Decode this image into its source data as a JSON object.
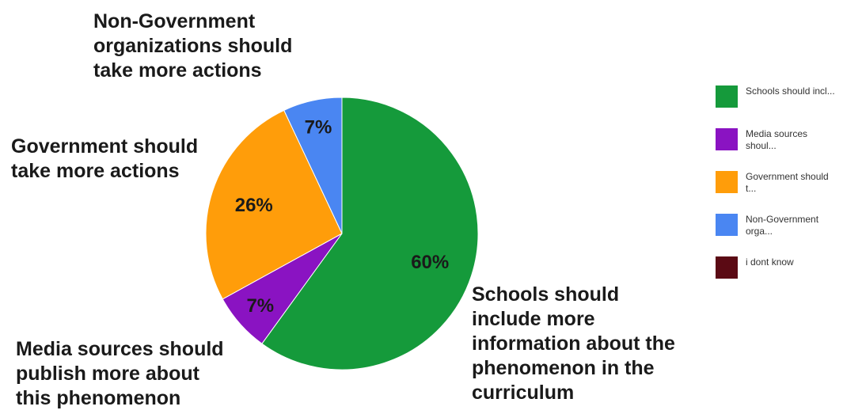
{
  "chart_data": {
    "type": "pie",
    "title": "",
    "slices": [
      {
        "label": "Schools should include more information about the phenomenon in the curriculum",
        "value": 60,
        "display": "60%",
        "color": "#159a3b"
      },
      {
        "label": "Media sources should publish more about this phenomenon",
        "value": 7,
        "display": "7%",
        "color": "#8a13c2"
      },
      {
        "label": "Government should take more actions",
        "value": 26,
        "display": "26%",
        "color": "#ff9d0a"
      },
      {
        "label": "Non-Government organizations should take more actions",
        "value": 7,
        "display": "7%",
        "color": "#4a86f2"
      },
      {
        "label": "i dont know",
        "value": 0,
        "display": "",
        "color": "#5b0a14"
      }
    ],
    "legend_position": "right"
  },
  "labels": {
    "ngo": "Non-Government\norganizations should\ntake more actions",
    "gov": "Government should\ntake more actions",
    "media": "Media sources should\npublish more about\nthis phenomenon",
    "schools": "Schools should\ninclude more\ninformation about the\nphenomenon in the\ncurriculum"
  },
  "legend": [
    {
      "text": "Schools should incl...",
      "color": "#159a3b"
    },
    {
      "text": "Media sources\nshoul...",
      "color": "#8a13c2"
    },
    {
      "text": "Government should\nt...",
      "color": "#ff9d0a"
    },
    {
      "text": "Non-Government\norga...",
      "color": "#4a86f2"
    },
    {
      "text": "i dont know",
      "color": "#5b0a14"
    }
  ]
}
